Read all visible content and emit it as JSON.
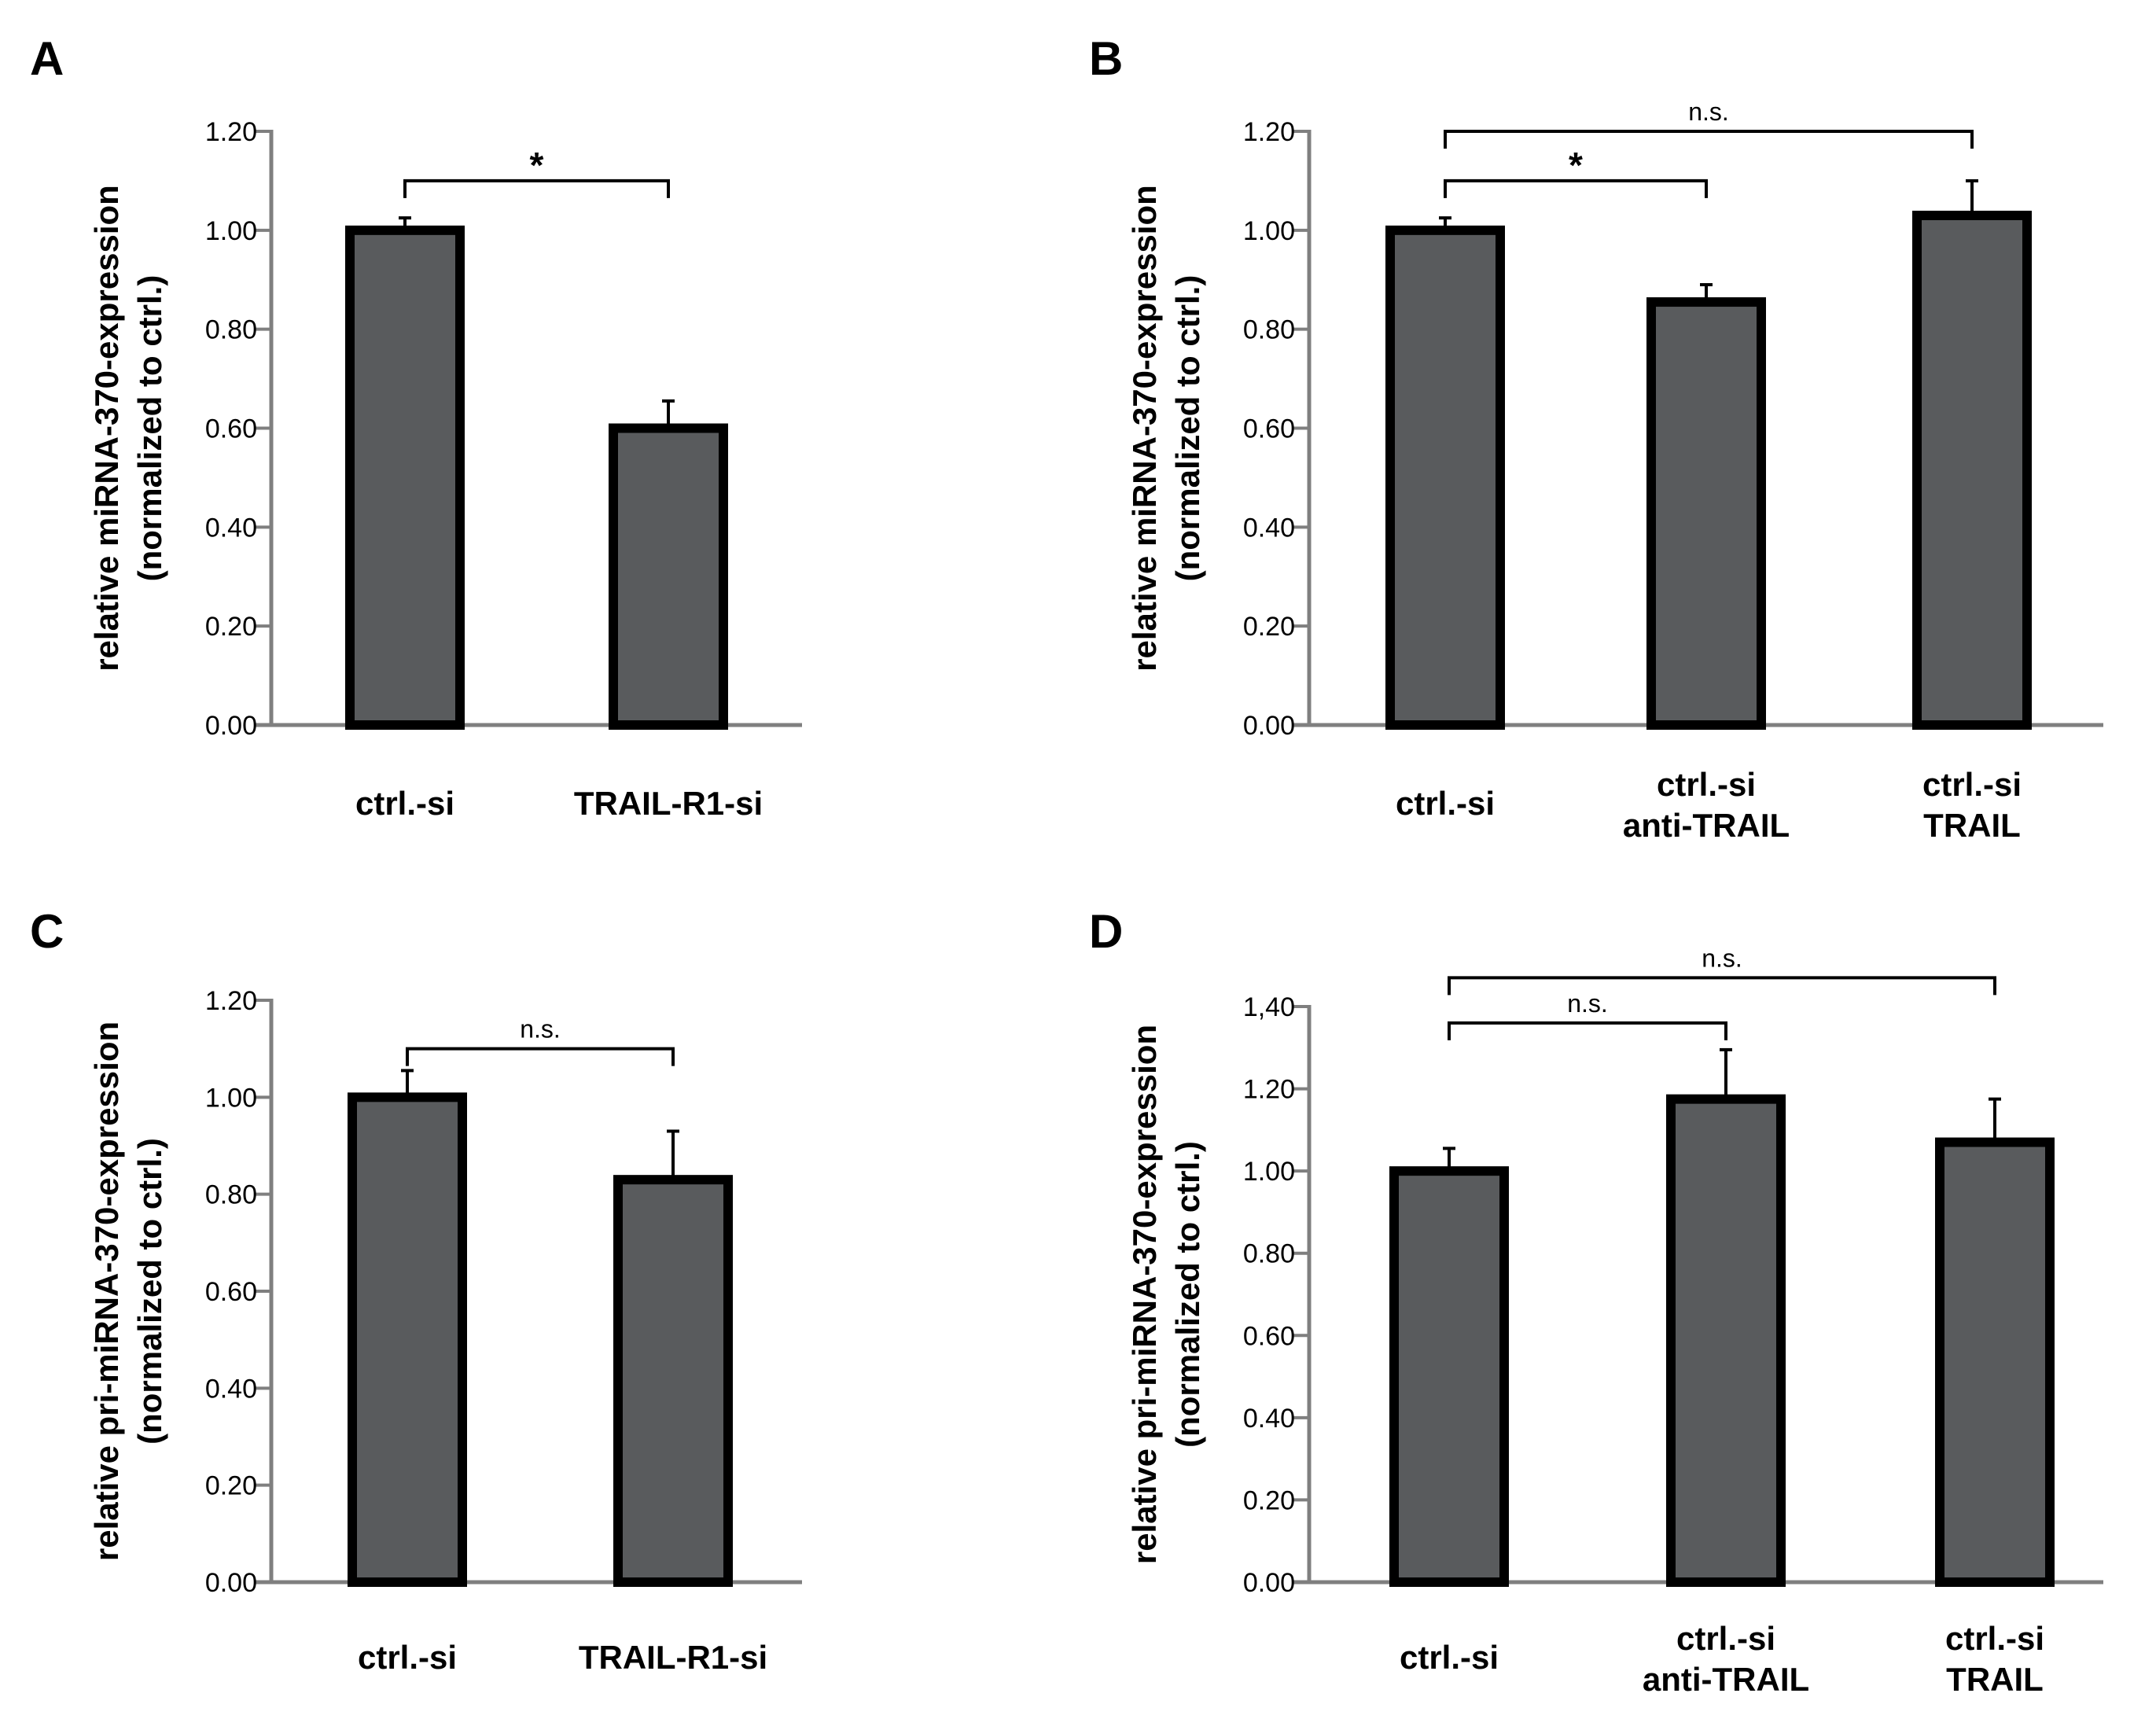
{
  "chart_data": [
    {
      "panel": "A",
      "type": "bar",
      "ylabel": [
        "relative miRNA-370-expression",
        "(normalized to ctrl.)"
      ],
      "ylim": [
        0,
        1.2
      ],
      "yticks": [
        "0.00",
        "0.20",
        "0.40",
        "0.60",
        "0.80",
        "1.00",
        "1.20"
      ],
      "categories": [
        [
          "ctrl.-si"
        ],
        [
          "TRAIL-R1-si"
        ]
      ],
      "values": [
        1.0,
        0.6
      ],
      "errors": [
        0.025,
        0.055
      ],
      "significance": [
        {
          "from": 0,
          "to": 1,
          "label": "*"
        }
      ]
    },
    {
      "panel": "B",
      "type": "bar",
      "ylabel": [
        "relative miRNA-370-expression",
        "(normalized to ctrl.)"
      ],
      "ylim": [
        0,
        1.2
      ],
      "yticks": [
        "0.00",
        "0.20",
        "0.40",
        "0.60",
        "0.80",
        "1.00",
        "1.20"
      ],
      "categories": [
        [
          "ctrl.-si"
        ],
        [
          "ctrl.-si",
          "anti-TRAIL"
        ],
        [
          "ctrl.-si",
          "TRAIL"
        ]
      ],
      "values": [
        1.0,
        0.855,
        1.03
      ],
      "errors": [
        0.025,
        0.035,
        0.07
      ],
      "significance": [
        {
          "from": 0,
          "to": 1,
          "label": "*"
        },
        {
          "from": 0,
          "to": 2,
          "label": "n.s."
        }
      ]
    },
    {
      "panel": "C",
      "type": "bar",
      "ylabel": [
        "relative pri-miRNA-370-expression",
        "(normalized to ctrl.)"
      ],
      "ylim": [
        0,
        1.2
      ],
      "yticks": [
        "0.00",
        "0.20",
        "0.40",
        "0.60",
        "0.80",
        "1.00",
        "1.20"
      ],
      "categories": [
        [
          "ctrl.-si"
        ],
        [
          "TRAIL-R1-si"
        ]
      ],
      "values": [
        1.0,
        0.83
      ],
      "errors": [
        0.055,
        0.1
      ],
      "significance": [
        {
          "from": 0,
          "to": 1,
          "label": "n.s."
        }
      ]
    },
    {
      "panel": "D",
      "type": "bar",
      "ylabel": [
        "relative pri-miRNA-370-expression",
        "(normalized to ctrl.)"
      ],
      "ylim": [
        0,
        1.4
      ],
      "yticks": [
        "0.00",
        "0.20",
        "0.40",
        "0.60",
        "0.80",
        "1.00",
        "1.20",
        "1,40"
      ],
      "categories": [
        [
          "ctrl.-si"
        ],
        [
          "ctrl.-si",
          "anti-TRAIL"
        ],
        [
          "ctrl.-si",
          "TRAIL"
        ]
      ],
      "values": [
        1.0,
        1.175,
        1.07
      ],
      "errors": [
        0.055,
        0.12,
        0.105
      ],
      "significance": [
        {
          "from": 0,
          "to": 1,
          "label": "n.s."
        },
        {
          "from": 0,
          "to": 2,
          "label": "n.s."
        }
      ]
    }
  ]
}
